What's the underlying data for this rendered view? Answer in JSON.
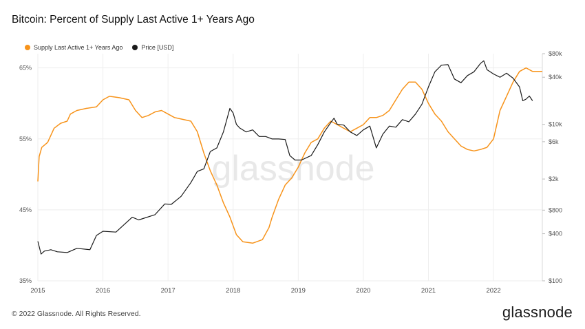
{
  "title": "Bitcoin: Percent of Supply Last Active 1+ Years Ago",
  "footer": {
    "copyright": "© 2022 Glassnode. All Rights Reserved.",
    "brand": "glassnode"
  },
  "watermark": "glassnode",
  "colors": {
    "supply": "#f7931a",
    "price": "#1a1a1a",
    "grid": "#eeeeee",
    "axis": "#d9d9d9"
  },
  "chart_data": {
    "type": "line",
    "title": "Bitcoin: Percent of Supply Last Active 1+ Years Ago",
    "x_ticks": [
      "2015",
      "2016",
      "2017",
      "2018",
      "2019",
      "2020",
      "2021",
      "2022"
    ],
    "x_range": [
      2015.0,
      2022.75
    ],
    "left_axis": {
      "ticks": [
        "35%",
        "45%",
        "55%",
        "65%"
      ],
      "range": [
        35,
        67
      ]
    },
    "right_axis": {
      "scale": "log",
      "ticks": [
        "$100",
        "$400",
        "$800",
        "$2k",
        "$6k",
        "$10k",
        "$40k",
        "$80k"
      ],
      "tick_values": [
        100,
        400,
        800,
        2000,
        6000,
        10000,
        40000,
        80000
      ],
      "range": [
        100,
        80000
      ]
    },
    "legend": [
      "Supply Last Active 1+ Years Ago",
      "Price [USD]"
    ],
    "series": [
      {
        "name": "Supply Last Active 1+ Years Ago",
        "axis": "left",
        "points": [
          [
            2015.0,
            49.0
          ],
          [
            2015.02,
            52.5
          ],
          [
            2015.06,
            53.8
          ],
          [
            2015.15,
            54.5
          ],
          [
            2015.25,
            56.5
          ],
          [
            2015.35,
            57.2
          ],
          [
            2015.45,
            57.5
          ],
          [
            2015.5,
            58.5
          ],
          [
            2015.6,
            59.0
          ],
          [
            2015.75,
            59.3
          ],
          [
            2015.9,
            59.5
          ],
          [
            2016.0,
            60.5
          ],
          [
            2016.1,
            61.0
          ],
          [
            2016.25,
            60.8
          ],
          [
            2016.4,
            60.5
          ],
          [
            2016.5,
            59.0
          ],
          [
            2016.6,
            58.0
          ],
          [
            2016.7,
            58.3
          ],
          [
            2016.8,
            58.8
          ],
          [
            2016.9,
            59.0
          ],
          [
            2017.0,
            58.5
          ],
          [
            2017.1,
            58.0
          ],
          [
            2017.2,
            57.8
          ],
          [
            2017.35,
            57.5
          ],
          [
            2017.45,
            56.0
          ],
          [
            2017.55,
            53.0
          ],
          [
            2017.65,
            50.5
          ],
          [
            2017.75,
            48.5
          ],
          [
            2017.85,
            46.0
          ],
          [
            2017.95,
            44.0
          ],
          [
            2018.05,
            41.5
          ],
          [
            2018.15,
            40.5
          ],
          [
            2018.3,
            40.3
          ],
          [
            2018.45,
            40.8
          ],
          [
            2018.55,
            42.5
          ],
          [
            2018.6,
            44.0
          ],
          [
            2018.7,
            46.5
          ],
          [
            2018.8,
            48.5
          ],
          [
            2018.9,
            49.5
          ],
          [
            2019.0,
            51.0
          ],
          [
            2019.1,
            53.0
          ],
          [
            2019.2,
            54.5
          ],
          [
            2019.3,
            55.0
          ],
          [
            2019.4,
            56.5
          ],
          [
            2019.5,
            57.5
          ],
          [
            2019.6,
            57.0
          ],
          [
            2019.7,
            56.5
          ],
          [
            2019.8,
            56.0
          ],
          [
            2019.9,
            56.5
          ],
          [
            2020.0,
            57.0
          ],
          [
            2020.1,
            58.0
          ],
          [
            2020.2,
            58.0
          ],
          [
            2020.3,
            58.3
          ],
          [
            2020.4,
            59.0
          ],
          [
            2020.5,
            60.5
          ],
          [
            2020.6,
            62.0
          ],
          [
            2020.7,
            63.0
          ],
          [
            2020.8,
            63.0
          ],
          [
            2020.9,
            62.0
          ],
          [
            2021.0,
            60.0
          ],
          [
            2021.1,
            58.5
          ],
          [
            2021.2,
            57.5
          ],
          [
            2021.3,
            56.0
          ],
          [
            2021.4,
            55.0
          ],
          [
            2021.5,
            54.0
          ],
          [
            2021.6,
            53.5
          ],
          [
            2021.7,
            53.3
          ],
          [
            2021.8,
            53.5
          ],
          [
            2021.9,
            53.8
          ],
          [
            2022.0,
            55.0
          ],
          [
            2022.1,
            59.0
          ],
          [
            2022.2,
            61.0
          ],
          [
            2022.3,
            63.0
          ],
          [
            2022.4,
            64.5
          ],
          [
            2022.5,
            65.0
          ],
          [
            2022.6,
            64.5
          ],
          [
            2022.75,
            64.5
          ]
        ]
      },
      {
        "name": "Price [USD]",
        "axis": "right",
        "points": [
          [
            2015.0,
            320
          ],
          [
            2015.05,
            220
          ],
          [
            2015.1,
            240
          ],
          [
            2015.2,
            250
          ],
          [
            2015.3,
            235
          ],
          [
            2015.45,
            230
          ],
          [
            2015.6,
            260
          ],
          [
            2015.8,
            250
          ],
          [
            2015.9,
            380
          ],
          [
            2016.0,
            430
          ],
          [
            2016.2,
            420
          ],
          [
            2016.45,
            650
          ],
          [
            2016.55,
            600
          ],
          [
            2016.8,
            700
          ],
          [
            2016.95,
            960
          ],
          [
            2017.05,
            950
          ],
          [
            2017.2,
            1200
          ],
          [
            2017.35,
            1800
          ],
          [
            2017.45,
            2500
          ],
          [
            2017.55,
            2700
          ],
          [
            2017.65,
            4500
          ],
          [
            2017.75,
            5000
          ],
          [
            2017.85,
            8000
          ],
          [
            2017.95,
            16000
          ],
          [
            2018.0,
            14000
          ],
          [
            2018.05,
            10000
          ],
          [
            2018.1,
            9000
          ],
          [
            2018.2,
            8000
          ],
          [
            2018.3,
            8500
          ],
          [
            2018.4,
            7000
          ],
          [
            2018.5,
            7000
          ],
          [
            2018.6,
            6500
          ],
          [
            2018.7,
            6500
          ],
          [
            2018.8,
            6400
          ],
          [
            2018.87,
            4000
          ],
          [
            2018.95,
            3500
          ],
          [
            2019.05,
            3500
          ],
          [
            2019.2,
            4000
          ],
          [
            2019.3,
            5500
          ],
          [
            2019.4,
            8000
          ],
          [
            2019.5,
            10500
          ],
          [
            2019.55,
            12000
          ],
          [
            2019.6,
            10000
          ],
          [
            2019.7,
            9800
          ],
          [
            2019.8,
            8000
          ],
          [
            2019.9,
            7200
          ],
          [
            2020.0,
            8500
          ],
          [
            2020.1,
            9500
          ],
          [
            2020.2,
            5000
          ],
          [
            2020.3,
            7500
          ],
          [
            2020.4,
            9500
          ],
          [
            2020.5,
            9200
          ],
          [
            2020.6,
            11500
          ],
          [
            2020.7,
            10800
          ],
          [
            2020.8,
            13500
          ],
          [
            2020.9,
            18000
          ],
          [
            2021.0,
            30000
          ],
          [
            2021.1,
            47000
          ],
          [
            2021.2,
            57000
          ],
          [
            2021.3,
            58000
          ],
          [
            2021.4,
            38000
          ],
          [
            2021.5,
            34000
          ],
          [
            2021.6,
            42000
          ],
          [
            2021.7,
            47000
          ],
          [
            2021.8,
            60000
          ],
          [
            2021.85,
            65000
          ],
          [
            2021.9,
            50000
          ],
          [
            2022.0,
            44000
          ],
          [
            2022.1,
            40000
          ],
          [
            2022.2,
            45000
          ],
          [
            2022.3,
            39000
          ],
          [
            2022.4,
            30000
          ],
          [
            2022.45,
            20000
          ],
          [
            2022.5,
            21000
          ],
          [
            2022.55,
            23000
          ],
          [
            2022.6,
            20000
          ]
        ]
      }
    ]
  }
}
